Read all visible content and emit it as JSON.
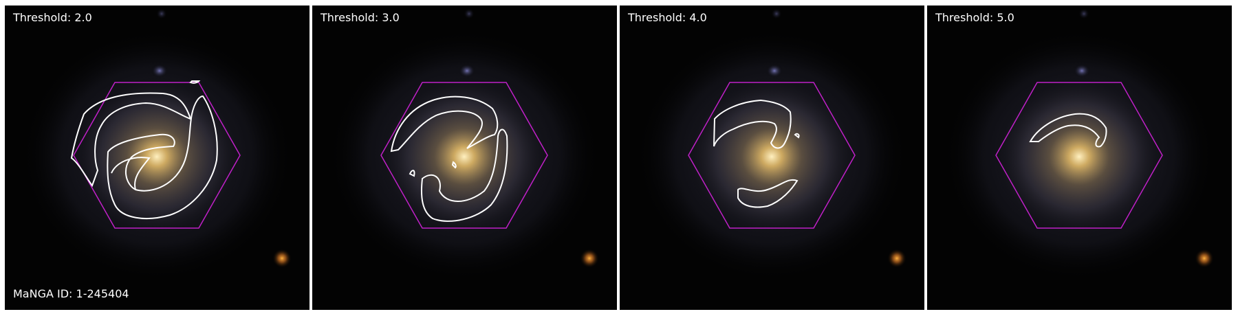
{
  "panels": [
    {
      "threshold_label": "Threshold: 2.0"
    },
    {
      "threshold_label": "Threshold: 3.0"
    },
    {
      "threshold_label": "Threshold: 4.0"
    },
    {
      "threshold_label": "Threshold: 5.0"
    }
  ],
  "galaxy_id_label": "MaNGA ID: 1-245404",
  "colors": {
    "hexagon": "#c020c8",
    "contour": "#ffffff",
    "background": "#030303",
    "core": "#e8c070"
  }
}
